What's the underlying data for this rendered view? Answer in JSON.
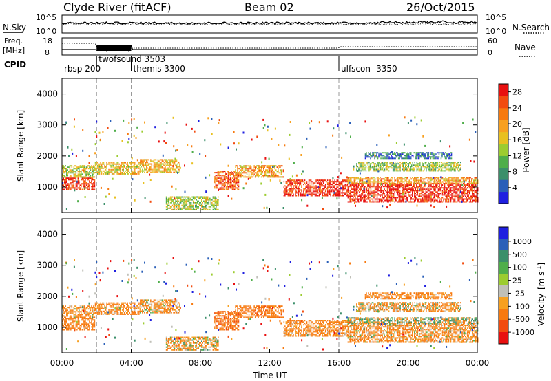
{
  "header": {
    "station": "Clyde River (fitACF)",
    "beam": "Beam 02",
    "date": "26/Oct/2015"
  },
  "noise_panel": {
    "left_label": "N.Sky",
    "right_label": "N.Search",
    "left_ticks": [
      "10^5",
      "10^0"
    ],
    "right_ticks": [
      "10^5",
      "10^0"
    ],
    "series_sky": "solid",
    "series_search": "dotted"
  },
  "freq_panel": {
    "left_label_1": "Freq.",
    "left_label_2": "[MHz]",
    "right_label": "Nave",
    "left_ticks": [
      "18",
      "8"
    ],
    "right_ticks": [
      "60",
      "0"
    ]
  },
  "cpid_panel": {
    "label": "CPID",
    "modes": [
      {
        "name": "rbsp 200",
        "start_hour": 0.0
      },
      {
        "name": "twofsound 3503",
        "start_hour": 2.0
      },
      {
        "name": "themis 3300",
        "start_hour": 4.0
      },
      {
        "name": "ulfscon -3350",
        "start_hour": 16.0
      }
    ]
  },
  "x_axis": {
    "label": "Time UT",
    "ticks": [
      "00:00",
      "04:00",
      "08:00",
      "12:00",
      "16:00",
      "20:00",
      "00:00"
    ]
  },
  "power_panel": {
    "ylabel": "Slant Range [km]",
    "yticks": [
      "1000",
      "2000",
      "3000",
      "4000"
    ],
    "colorbar_label": "Power [dB]",
    "colorbar_ticks": [
      "4",
      "8",
      "12",
      "16",
      "20",
      "24",
      "28"
    ],
    "colors": [
      "#1f1fe0",
      "#2a5fb8",
      "#3b8f6a",
      "#4fae4a",
      "#9ccc30",
      "#e8c020",
      "#f7a020",
      "#f77a10",
      "#f24c10",
      "#e81010"
    ]
  },
  "velocity_panel": {
    "ylabel": "Slant Range [km]",
    "yticks": [
      "1000",
      "2000",
      "3000",
      "4000"
    ],
    "colorbar_label_main": "Velocity",
    "colorbar_label_unit": "[m s",
    "colorbar_label_exp": "-1",
    "colorbar_label_close": "]",
    "colorbar_ticks": [
      "1000",
      "500",
      "100",
      "25",
      "-25",
      "-100",
      "-500",
      "-1000"
    ],
    "colors": [
      "#1f1fe0",
      "#2a5fb8",
      "#3b8f6a",
      "#4fae4a",
      "#9ccc30",
      "#c0c0b8",
      "#f7a020",
      "#f77a10",
      "#f24c10",
      "#e81010"
    ]
  },
  "chart_data": {
    "type": "heatmap",
    "x_range_hours": [
      0,
      24
    ],
    "y_range_km": [
      180,
      4500
    ],
    "power_range_db": [
      0,
      30
    ],
    "velocity_range_ms": [
      -1000,
      1000
    ],
    "scatter_regions": [
      {
        "t0": 0.0,
        "t1": 1.9,
        "r0": 900,
        "r1": 1300,
        "power": 27,
        "velocity": -300
      },
      {
        "t0": 0.0,
        "t1": 1.9,
        "r0": 1300,
        "r1": 1700,
        "power": 15,
        "velocity": -150
      },
      {
        "t0": 1.9,
        "t1": 4.5,
        "r0": 1400,
        "r1": 1800,
        "power": 17,
        "velocity": -200
      },
      {
        "t0": 4.5,
        "t1": 6.8,
        "r0": 1450,
        "r1": 1900,
        "power": 18,
        "velocity": -150
      },
      {
        "t0": 6.0,
        "t1": 9.0,
        "r0": 250,
        "r1": 700,
        "power": 14,
        "velocity": -120
      },
      {
        "t0": 8.8,
        "t1": 10.2,
        "r0": 900,
        "r1": 1500,
        "power": 24,
        "velocity": -400
      },
      {
        "t0": 10.0,
        "t1": 12.8,
        "r0": 1300,
        "r1": 1700,
        "power": 20,
        "velocity": -350
      },
      {
        "t0": 12.8,
        "t1": 16.5,
        "r0": 700,
        "r1": 1200,
        "power": 28,
        "velocity": -200
      },
      {
        "t0": 16.5,
        "t1": 24.0,
        "r0": 500,
        "r1": 1100,
        "power": 28,
        "velocity": -150
      },
      {
        "t0": 16.5,
        "t1": 24.0,
        "r0": 1100,
        "r1": 1300,
        "power": 20,
        "velocity": 0
      },
      {
        "t0": 17.0,
        "t1": 23.0,
        "r0": 1500,
        "r1": 1800,
        "power": 13,
        "velocity": -100
      },
      {
        "t0": 17.5,
        "t1": 22.5,
        "r0": 1900,
        "r1": 2100,
        "power": 6,
        "velocity": -200
      }
    ]
  }
}
